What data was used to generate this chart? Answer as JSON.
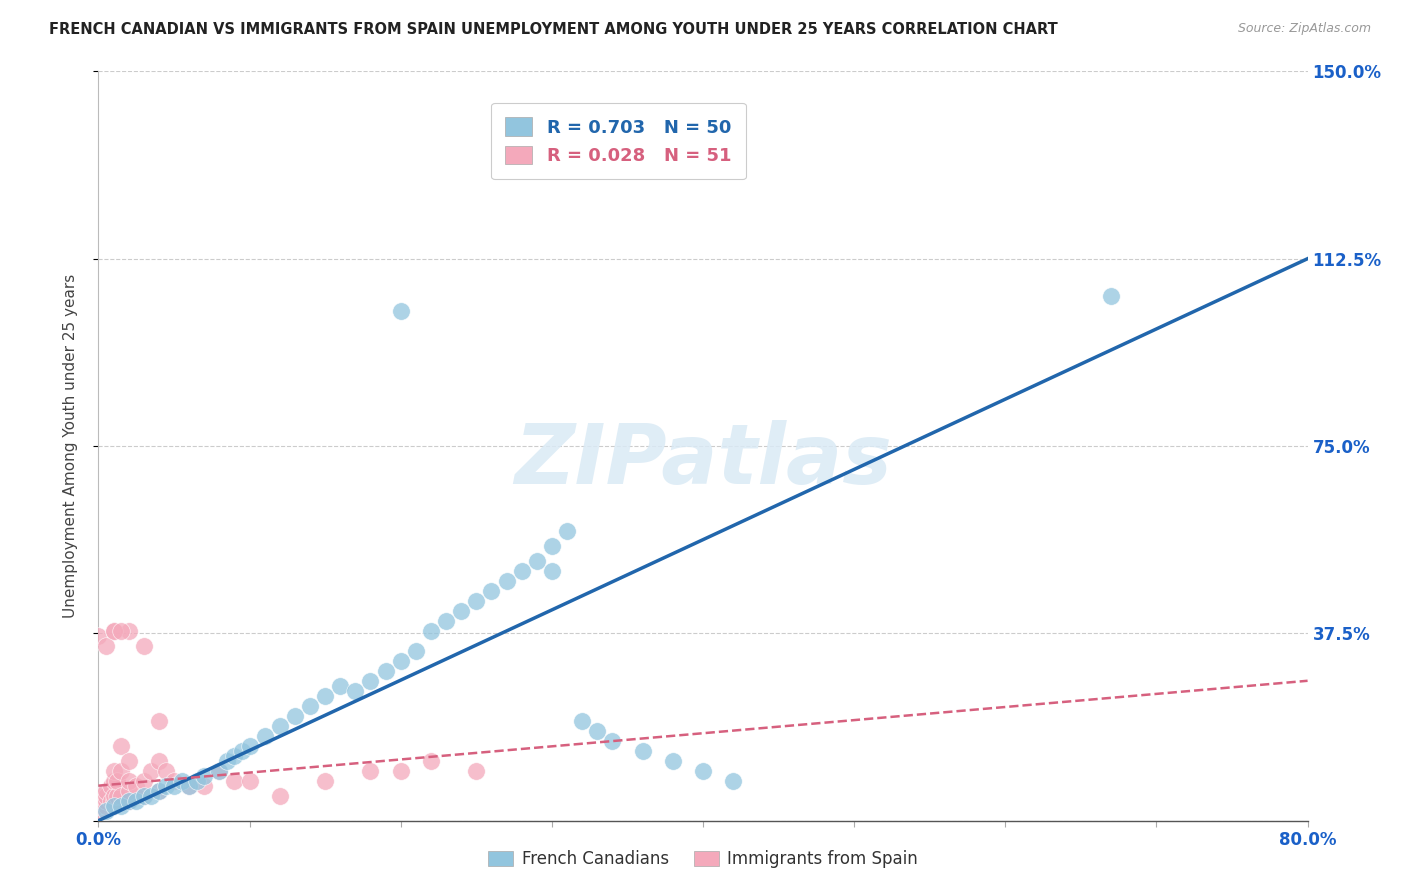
{
  "title": "FRENCH CANADIAN VS IMMIGRANTS FROM SPAIN UNEMPLOYMENT AMONG YOUTH UNDER 25 YEARS CORRELATION CHART",
  "source": "Source: ZipAtlas.com",
  "ylabel": "Unemployment Among Youth under 25 years",
  "xlim": [
    0.0,
    0.8
  ],
  "ylim": [
    0.0,
    1.5
  ],
  "xticks": [
    0.0,
    0.1,
    0.2,
    0.3,
    0.4,
    0.5,
    0.6,
    0.7,
    0.8
  ],
  "xtick_labels": [
    "0.0%",
    "",
    "",
    "",
    "",
    "",
    "",
    "",
    "80.0%"
  ],
  "yticks": [
    0.0,
    0.375,
    0.75,
    1.125,
    1.5
  ],
  "ytick_labels": [
    "",
    "37.5%",
    "75.0%",
    "112.5%",
    "150.0%"
  ],
  "blue_R": 0.703,
  "blue_N": 50,
  "pink_R": 0.028,
  "pink_N": 51,
  "blue_color": "#92c5de",
  "pink_color": "#f4a9bb",
  "blue_line_color": "#2166ac",
  "pink_line_color": "#d6607e",
  "legend_label_blue": "French Canadians",
  "legend_label_pink": "Immigrants from Spain",
  "watermark": "ZIPatlas",
  "blue_scatter_x": [
    0.005,
    0.01,
    0.015,
    0.02,
    0.025,
    0.03,
    0.035,
    0.04,
    0.045,
    0.05,
    0.055,
    0.06,
    0.065,
    0.07,
    0.08,
    0.085,
    0.09,
    0.095,
    0.1,
    0.11,
    0.12,
    0.13,
    0.14,
    0.15,
    0.16,
    0.17,
    0.18,
    0.19,
    0.2,
    0.21,
    0.22,
    0.23,
    0.24,
    0.25,
    0.26,
    0.27,
    0.28,
    0.29,
    0.3,
    0.31,
    0.32,
    0.33,
    0.34,
    0.36,
    0.38,
    0.4,
    0.42,
    0.2,
    0.67,
    0.3
  ],
  "blue_scatter_y": [
    0.02,
    0.03,
    0.03,
    0.04,
    0.04,
    0.05,
    0.05,
    0.06,
    0.07,
    0.07,
    0.08,
    0.07,
    0.08,
    0.09,
    0.1,
    0.12,
    0.13,
    0.14,
    0.15,
    0.17,
    0.19,
    0.21,
    0.23,
    0.25,
    0.27,
    0.26,
    0.28,
    0.3,
    0.32,
    0.34,
    0.38,
    0.4,
    0.42,
    0.44,
    0.46,
    0.48,
    0.5,
    0.52,
    0.55,
    0.58,
    0.2,
    0.18,
    0.16,
    0.14,
    0.12,
    0.1,
    0.08,
    1.02,
    1.05,
    0.5
  ],
  "pink_scatter_x": [
    0.0,
    0.0,
    0.0,
    0.0,
    0.005,
    0.005,
    0.005,
    0.005,
    0.008,
    0.008,
    0.01,
    0.01,
    0.01,
    0.01,
    0.01,
    0.012,
    0.012,
    0.015,
    0.015,
    0.015,
    0.02,
    0.02,
    0.02,
    0.02,
    0.025,
    0.03,
    0.03,
    0.035,
    0.04,
    0.04,
    0.045,
    0.05,
    0.06,
    0.07,
    0.08,
    0.09,
    0.1,
    0.12,
    0.15,
    0.18,
    0.2,
    0.22,
    0.25,
    0.03,
    0.04,
    0.0,
    0.01,
    0.02,
    0.005,
    0.01,
    0.015
  ],
  "pink_scatter_y": [
    0.02,
    0.03,
    0.04,
    0.05,
    0.03,
    0.04,
    0.05,
    0.06,
    0.04,
    0.07,
    0.03,
    0.04,
    0.05,
    0.08,
    0.1,
    0.05,
    0.08,
    0.05,
    0.1,
    0.15,
    0.04,
    0.06,
    0.08,
    0.12,
    0.07,
    0.05,
    0.08,
    0.1,
    0.06,
    0.12,
    0.1,
    0.08,
    0.07,
    0.07,
    0.1,
    0.08,
    0.08,
    0.05,
    0.08,
    0.1,
    0.1,
    0.12,
    0.1,
    0.35,
    0.2,
    0.37,
    0.38,
    0.38,
    0.35,
    0.38,
    0.38
  ],
  "blue_line_x0": 0.0,
  "blue_line_x1": 0.8,
  "blue_line_y0": 0.0,
  "blue_line_y1": 1.125,
  "pink_line_x0": 0.0,
  "pink_line_x1": 0.8,
  "pink_line_y0": 0.07,
  "pink_line_y1": 0.28
}
